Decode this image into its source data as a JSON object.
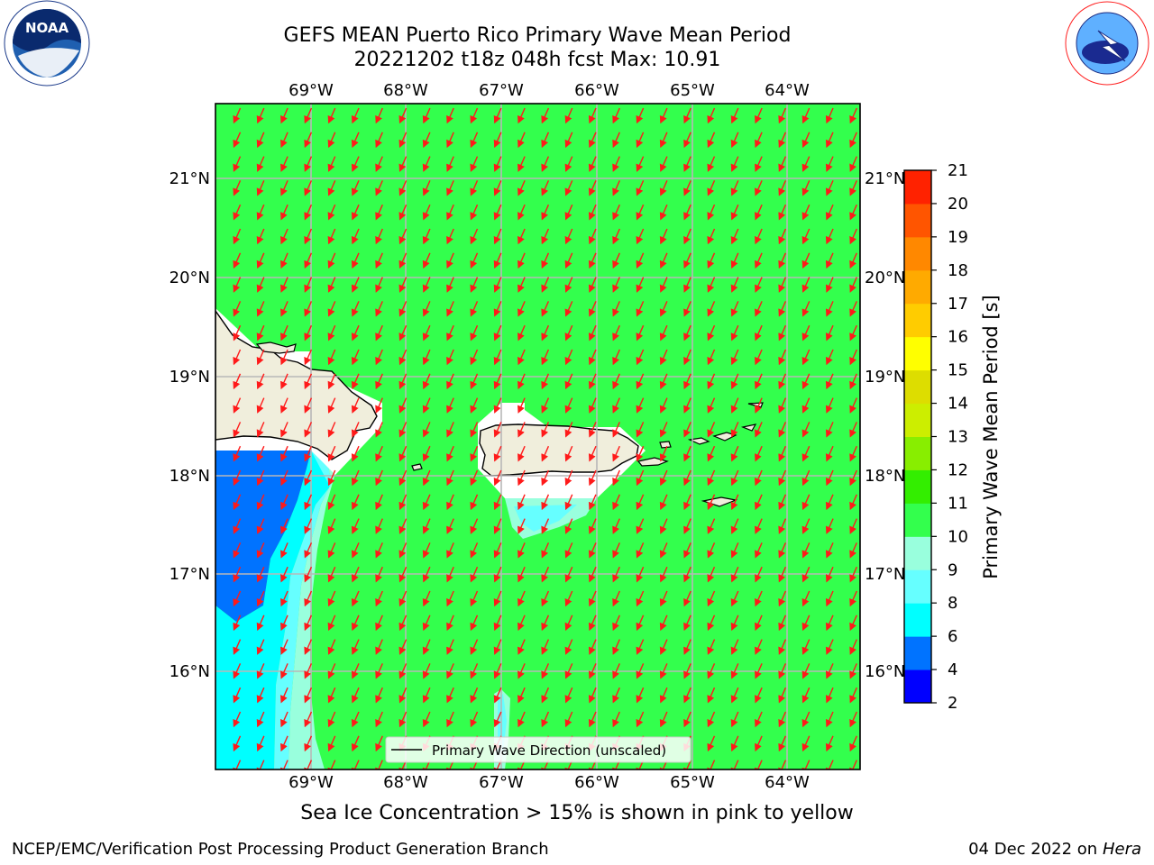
{
  "header": {
    "title_line1": "GEFS MEAN Puerto Rico Primary Wave Mean Period",
    "title_line2": "20221202 t18z 048h fcst   Max: 10.91"
  },
  "logos": {
    "noaa_text": "NOAA",
    "noaa_ring": "NATIONAL OCEANIC AND ATMOSPHERIC ADMINISTRATION · U.S. DEPARTMENT OF COMMERCE",
    "nws_ring": "NATIONAL WEATHER SERVICE"
  },
  "map": {
    "lon_labels": [
      "69°W",
      "68°W",
      "67°W",
      "66°W",
      "65°W",
      "64°W"
    ],
    "lat_labels": [
      "21°N",
      "20°N",
      "19°N",
      "18°N",
      "17°N",
      "16°N"
    ],
    "legend_label": "Primary Wave Direction (unscaled)",
    "field_color": "#33ff4d",
    "arrow_color": "#ff1a1a",
    "land_color": "#f0eedc"
  },
  "colorbar": {
    "label": "Primary Wave Mean Period [s]",
    "ticks": [
      "2",
      "4",
      "6",
      "8",
      "9",
      "10",
      "11",
      "12",
      "13",
      "14",
      "15",
      "16",
      "17",
      "18",
      "19",
      "20",
      "21"
    ],
    "colors": [
      "#0000ff",
      "#0073ff",
      "#00ffff",
      "#66ffff",
      "#99ffdd",
      "#33ff4d",
      "#33ee00",
      "#88ee00",
      "#ccee00",
      "#dddd00",
      "#ffff00",
      "#ffcc00",
      "#ffaa00",
      "#ff8800",
      "#ff5500",
      "#ff2200"
    ]
  },
  "notes": {
    "sea_ice": "Sea Ice Concentration > 15% is shown in pink to yellow"
  },
  "footer": {
    "left": "NCEP/EMC/Verification Post Processing Product Generation Branch",
    "date": "04 Dec 2022 on",
    "host": "Hera"
  }
}
